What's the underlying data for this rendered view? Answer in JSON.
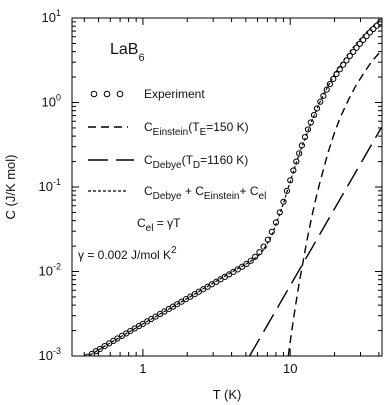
{
  "chart_data": {
    "type": "line",
    "xscale": "log",
    "yscale": "log",
    "xlim": [
      0.33,
      42
    ],
    "ylim": [
      0.001,
      10
    ],
    "xlabel": "T (K)",
    "ylabel": "C (J/K mol)",
    "x_ticks": [
      {
        "value": 1,
        "label": "1"
      },
      {
        "value": 10,
        "label": "10"
      }
    ],
    "y_ticks": [
      {
        "value": 0.001,
        "base": "10",
        "exp": "-3"
      },
      {
        "value": 0.01,
        "base": "10",
        "exp": "-2"
      },
      {
        "value": 0.1,
        "base": "10",
        "exp": "-1"
      },
      {
        "value": 1,
        "base": "10",
        "exp": "0"
      },
      {
        "value": 10,
        "base": "10",
        "exp": "1"
      }
    ],
    "sample_label": {
      "main": "LaB",
      "sub": "6"
    },
    "series": [
      {
        "key": "experiment",
        "style": "open-circles",
        "legend": {
          "text": "Experiment"
        },
        "x": [
          0.42,
          0.45,
          0.48,
          0.51,
          0.55,
          0.59,
          0.63,
          0.67,
          0.72,
          0.77,
          0.82,
          0.88,
          0.94,
          1.0,
          1.07,
          1.14,
          1.22,
          1.31,
          1.4,
          1.5,
          1.6,
          1.71,
          1.83,
          1.96,
          2.1,
          2.25,
          2.4,
          2.57,
          2.75,
          2.94,
          3.15,
          3.37,
          3.6,
          3.85,
          4.12,
          4.41,
          4.72,
          5.05,
          5.4,
          5.78,
          6.18,
          6.6,
          7.05,
          7.5,
          8.0,
          8.5,
          9.0,
          9.5,
          10.0,
          10.5,
          11.0,
          11.5,
          12.0,
          12.6,
          13.2,
          13.8,
          14.5,
          15.2,
          16.0,
          16.8,
          17.7,
          18.6,
          19.6,
          20.6,
          21.7,
          22.9,
          24.1,
          25.4,
          26.8,
          28.2,
          29.7,
          31.3,
          33.0,
          34.8,
          36.7,
          38.7,
          40.8
        ],
        "y": [
          0.00098,
          0.00106,
          0.00114,
          0.00121,
          0.00131,
          0.00141,
          0.00151,
          0.00161,
          0.00173,
          0.00185,
          0.00197,
          0.00212,
          0.00226,
          0.0024,
          0.00257,
          0.00274,
          0.00293,
          0.00315,
          0.00336,
          0.0036,
          0.00384,
          0.0041,
          0.00439,
          0.00471,
          0.00504,
          0.0054,
          0.00576,
          0.00617,
          0.0066,
          0.00706,
          0.00756,
          0.00809,
          0.00864,
          0.00924,
          0.0099,
          0.0106,
          0.0114,
          0.0123,
          0.0134,
          0.0149,
          0.0169,
          0.0197,
          0.0238,
          0.0295,
          0.038,
          0.05,
          0.067,
          0.09,
          0.12,
          0.157,
          0.2,
          0.25,
          0.31,
          0.39,
          0.48,
          0.58,
          0.71,
          0.85,
          1.02,
          1.2,
          1.42,
          1.65,
          1.9,
          2.17,
          2.47,
          2.8,
          3.15,
          3.55,
          3.98,
          4.45,
          4.95,
          5.5,
          6.1,
          6.75,
          7.4,
          8.1,
          8.9
        ]
      },
      {
        "key": "einstein",
        "style": "short-dash",
        "legend": {
          "main": "C",
          "sub": "Einstein",
          "mid": "(T",
          "sub2": "E",
          "tail": "=150 K)"
        },
        "x": [
          9.7,
          10.0,
          10.5,
          11.0,
          11.5,
          12.0,
          13.0,
          14.0,
          15.0,
          16.0,
          18.0,
          20.0,
          22.0,
          25.0,
          28.0,
          32.0,
          36.0,
          41.0
        ],
        "y": [
          0.001,
          0.00147,
          0.00265,
          0.0045,
          0.0072,
          0.011,
          0.0235,
          0.044,
          0.075,
          0.118,
          0.25,
          0.44,
          0.68,
          1.1,
          1.6,
          2.3,
          3.1,
          4.0
        ]
      },
      {
        "key": "debye",
        "style": "long-dash",
        "legend": {
          "main": "C",
          "sub": "Debye",
          "mid": "(T",
          "sub2": "D",
          "tail": "=1160 K)"
        },
        "x": [
          5.3,
          41.5
        ],
        "y": [
          0.001,
          0.5
        ]
      },
      {
        "key": "total",
        "style": "dotted",
        "legend": {
          "main": "C",
          "sub": "Debye",
          "p1": " + C",
          "sub2": "Einstein",
          "p2": "+ C",
          "sub3": "el"
        },
        "x": [
          0.41,
          0.6,
          1.0,
          2.0,
          3.0,
          4.0,
          5.0,
          5.5,
          6.0,
          6.5,
          7.0,
          7.5,
          8.0,
          8.5,
          9.0,
          9.5,
          10.0,
          11.0,
          12.0,
          13.0,
          14.0,
          15.0,
          16.0,
          18.0,
          20.0,
          22.0,
          25.0,
          28.0,
          32.0,
          36.0,
          41.0
        ],
        "y": [
          0.00096,
          0.00143,
          0.0024,
          0.0048,
          0.0073,
          0.0098,
          0.0122,
          0.0136,
          0.015,
          0.0175,
          0.0215,
          0.027,
          0.036,
          0.048,
          0.064,
          0.087,
          0.115,
          0.195,
          0.3,
          0.43,
          0.6,
          0.8,
          1.03,
          1.55,
          2.15,
          2.8,
          3.85,
          4.95,
          6.45,
          7.9,
          9.6
        ]
      }
    ],
    "annotations": [
      {
        "key": "cel",
        "main": "C",
        "sub": "el",
        "tail": " = γT"
      },
      {
        "key": "gamma",
        "main": "γ = 0.002 J/mol K",
        "sup": "2"
      }
    ],
    "grid": false,
    "legend_position": "left"
  }
}
